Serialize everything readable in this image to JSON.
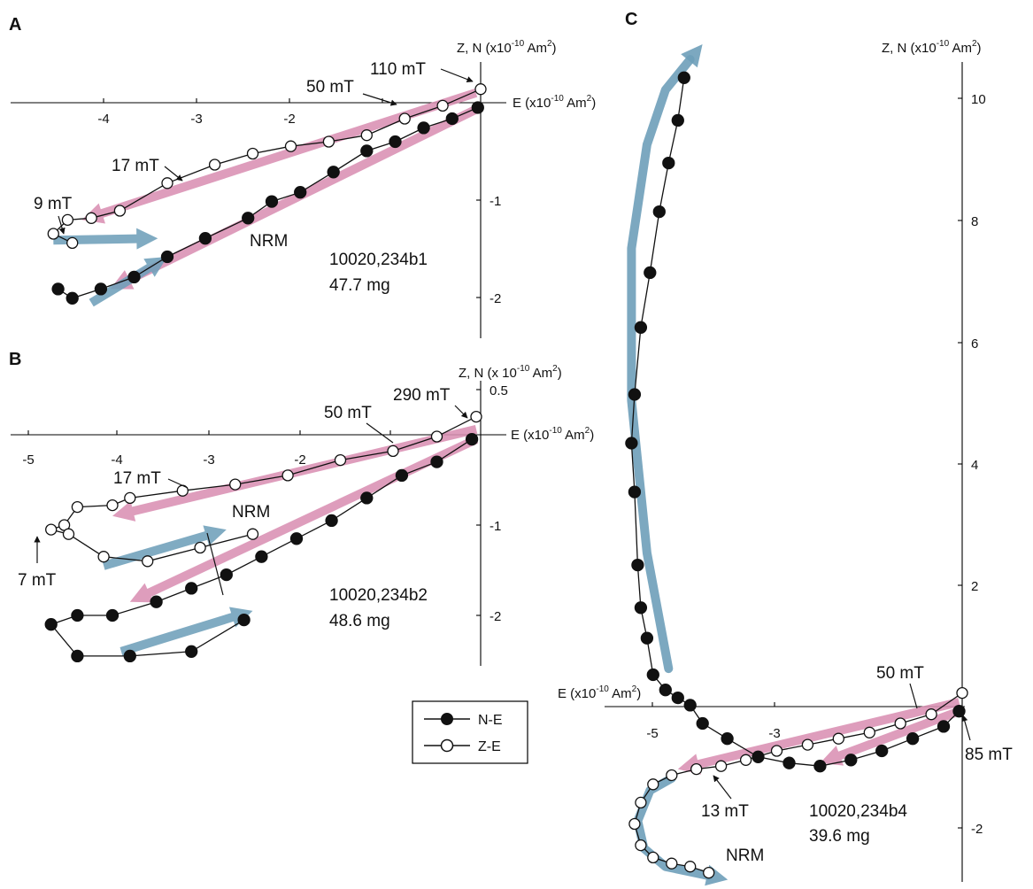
{
  "colors": {
    "pink": "#d98fb3",
    "blue": "#6e9fb9",
    "stroke": "#111111"
  },
  "legend": {
    "ne": "N-E",
    "ze": "Z-E"
  },
  "chart_data": [
    {
      "panel": "A",
      "type": "scatter",
      "axis_z_label": "Z, N (x10",
      "axis_z_exp": "-10",
      "axis_z_unit": " Am",
      "axis_z_sq": "2",
      "axis_z_close": ")",
      "axis_e_label": "E (x10",
      "axis_e_exp": "-10",
      "axis_e_unit": " Am",
      "axis_e_sq": "2",
      "axis_e_close": ")",
      "xlim": [
        -4.95,
        0.0
      ],
      "ylim": [
        -2.45,
        0.3
      ],
      "x_ticks": [
        "-4",
        "-3",
        "-2"
      ],
      "y_ticks": [
        "-1",
        "-2"
      ],
      "sample": "10020,234b1",
      "mass": "47.7 mg",
      "annotations": [
        "9 mT",
        "17 mT",
        "50 mT",
        "110 mT",
        "NRM"
      ],
      "series": [
        {
          "name": "N-E",
          "x": [
            -0.03,
            -0.3,
            -0.6,
            -0.9,
            -1.2,
            -1.55,
            -1.9,
            -2.2,
            -2.45,
            -2.9,
            -3.3,
            -3.65,
            -4.0,
            -4.3,
            -4.45
          ],
          "y": [
            -0.08,
            -0.2,
            -0.3,
            -0.45,
            -0.55,
            -0.78,
            -1.0,
            -1.1,
            -1.28,
            -1.5,
            -1.7,
            -1.92,
            -2.05,
            -2.15,
            -2.05
          ]
        },
        {
          "name": "Z-E",
          "x": [
            0.0,
            -0.4,
            -0.8,
            -1.2,
            -1.6,
            -2.0,
            -2.4,
            -2.8,
            -3.3,
            -3.8,
            -4.1,
            -4.35,
            -4.5,
            -4.3
          ],
          "y": [
            0.12,
            -0.06,
            -0.2,
            -0.38,
            -0.45,
            -0.5,
            -0.58,
            -0.7,
            -0.9,
            -1.2,
            -1.28,
            -1.3,
            -1.45,
            -1.55
          ]
        }
      ],
      "fits": [
        {
          "color": "pink",
          "x": [
            -0.05,
            -4.2
          ],
          "y": [
            0.08,
            -1.3
          ]
        },
        {
          "color": "pink",
          "x": [
            -0.05,
            -3.9
          ],
          "y": [
            -0.1,
            -2.05
          ]
        },
        {
          "color": "blue",
          "x": [
            -4.5,
            -3.4
          ],
          "y": [
            -1.52,
            -1.5
          ]
        },
        {
          "color": "blue",
          "x": [
            -4.1,
            -3.3
          ],
          "y": [
            -2.2,
            -1.7
          ]
        }
      ]
    },
    {
      "panel": "B",
      "type": "scatter",
      "axis_z_label": "Z, N (x 10",
      "axis_z_exp": "-10",
      "axis_z_unit": " Am",
      "axis_z_sq": "2",
      "axis_z_close": ")",
      "axis_e_label": "E (x10",
      "axis_e_exp": "-10",
      "axis_e_unit": " Am",
      "axis_e_sq": "2",
      "axis_e_close": ")",
      "xlim": [
        -5.2,
        0.0
      ],
      "ylim": [
        -2.5,
        0.5
      ],
      "x_ticks": [
        "-5",
        "-4",
        "-3",
        "-2"
      ],
      "y_ticks": [
        "0.5",
        "-1",
        "-2"
      ],
      "sample": "10020,234b2",
      "mass": "48.6 mg",
      "annotations": [
        "7 mT",
        "17 mT",
        "50 mT",
        "290 mT",
        "NRM"
      ],
      "series": [
        {
          "name": "N-E",
          "x": [
            -0.1,
            -0.5,
            -0.9,
            -1.3,
            -1.7,
            -2.1,
            -2.5,
            -2.9,
            -3.3,
            -3.7,
            -4.2,
            -4.6,
            -4.9,
            -4.6,
            -4.0,
            -3.3,
            -2.7
          ],
          "y": [
            -0.05,
            -0.3,
            -0.45,
            -0.7,
            -0.95,
            -1.15,
            -1.35,
            -1.55,
            -1.7,
            -1.85,
            -2.0,
            -2.0,
            -2.1,
            -2.45,
            -2.45,
            -2.4,
            -2.05
          ]
        },
        {
          "name": "Z-E",
          "x": [
            -0.05,
            -0.5,
            -1.0,
            -1.6,
            -2.2,
            -2.8,
            -3.4,
            -4.0,
            -4.2,
            -4.6,
            -4.75,
            -4.9,
            -4.7,
            -4.3,
            -3.8,
            -3.2,
            -2.6
          ],
          "y": [
            0.2,
            -0.02,
            -0.18,
            -0.28,
            -0.45,
            -0.55,
            -0.62,
            -0.7,
            -0.78,
            -0.8,
            -1.0,
            -1.05,
            -1.1,
            -1.35,
            -1.4,
            -1.25,
            -1.1
          ]
        }
      ],
      "fits": [
        {
          "color": "pink",
          "x": [
            -0.05,
            -4.2
          ],
          "y": [
            0.06,
            -0.9
          ]
        },
        {
          "color": "pink",
          "x": [
            -0.05,
            -4.0
          ],
          "y": [
            -0.05,
            -1.85
          ]
        },
        {
          "color": "blue",
          "x": [
            -4.3,
            -2.9
          ],
          "y": [
            -1.45,
            -1.05
          ]
        },
        {
          "color": "blue",
          "x": [
            -4.1,
            -2.6
          ],
          "y": [
            -2.4,
            -1.95
          ]
        }
      ]
    },
    {
      "panel": "C",
      "type": "scatter",
      "axis_z_label": "Z, N (x10",
      "axis_z_exp": "-10",
      "axis_z_unit": " Am",
      "axis_z_sq": "2",
      "axis_z_close": ")",
      "axis_e_label": "E (x10",
      "axis_e_exp": "-10",
      "axis_e_unit": " Am",
      "axis_e_sq": "2",
      "axis_e_close": ")",
      "xlim": [
        -6.0,
        0.0
      ],
      "ylim": [
        -2.8,
        10.5
      ],
      "x_ticks": [
        "-5",
        "-3"
      ],
      "y_ticks": [
        "10",
        "8",
        "6",
        "4",
        "2",
        "-2"
      ],
      "sample": "10020,234b4",
      "mass": "39.6 mg",
      "annotations": [
        "13 mT",
        "50 mT",
        "85 mT",
        "NRM"
      ],
      "series": [
        {
          "name": "N-E",
          "x": [
            -4.5,
            -4.6,
            -4.75,
            -4.9,
            -5.05,
            -5.2,
            -5.3,
            -5.35,
            -5.3,
            -5.25,
            -5.2,
            -5.1,
            -5.0,
            -4.8,
            -4.6,
            -4.4,
            -4.2,
            -3.8,
            -3.3,
            -2.8,
            -2.3,
            -1.8,
            -1.3,
            -0.8,
            -0.3,
            -0.05
          ],
          "y": [
            10.3,
            9.6,
            8.9,
            8.1,
            7.1,
            6.2,
            5.1,
            4.3,
            3.5,
            2.3,
            1.6,
            1.1,
            0.5,
            0.25,
            0.12,
            0.0,
            -0.3,
            -0.55,
            -0.85,
            -0.95,
            -1.0,
            -0.9,
            -0.75,
            -0.55,
            -0.35,
            -0.1
          ]
        },
        {
          "name": "Z-E",
          "x": [
            0.0,
            -0.5,
            -1.0,
            -1.5,
            -2.0,
            -2.5,
            -3.0,
            -3.5,
            -3.9,
            -4.3,
            -4.7,
            -5.0,
            -5.2,
            -5.3,
            -5.2,
            -5.0,
            -4.7,
            -4.4,
            -4.1
          ],
          "y": [
            0.2,
            -0.15,
            -0.3,
            -0.45,
            -0.55,
            -0.65,
            -0.75,
            -0.9,
            -1.0,
            -1.05,
            -1.15,
            -1.3,
            -1.6,
            -1.95,
            -2.3,
            -2.5,
            -2.6,
            -2.65,
            -2.75
          ]
        }
      ],
      "fits": [
        {
          "color": "pink",
          "x": [
            -0.05,
            -4.6
          ],
          "y": [
            0.05,
            -1.05
          ]
        },
        {
          "color": "pink",
          "x": [
            -0.05,
            -2.3
          ],
          "y": [
            -0.1,
            -0.95
          ]
        }
      ],
      "curves": [
        {
          "color": "blue",
          "x": [
            -4.75,
            -5.1,
            -5.35,
            -5.35,
            -5.1,
            -4.8,
            -4.4
          ],
          "y": [
            0.6,
            2.5,
            5.0,
            7.5,
            9.2,
            10.1,
            10.6
          ]
        },
        {
          "color": "blue",
          "x": [
            -4.7,
            -5.05,
            -5.25,
            -5.15,
            -4.8,
            -4.1
          ],
          "y": [
            -1.2,
            -1.4,
            -1.9,
            -2.35,
            -2.65,
            -2.8
          ]
        }
      ]
    }
  ]
}
